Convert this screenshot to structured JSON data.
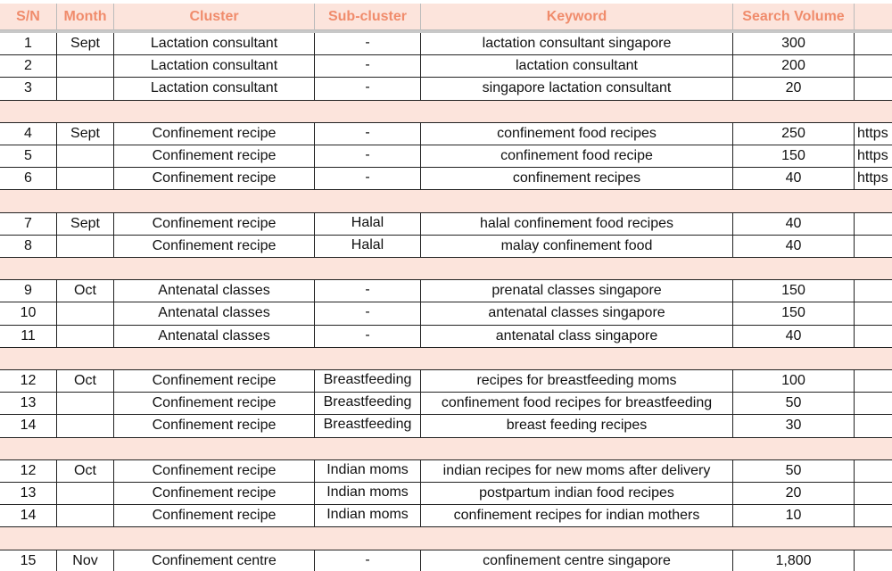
{
  "header": {
    "columns": [
      "S/N",
      "Month",
      "Cluster",
      "Sub-cluster",
      "Keyword",
      "Search Volume"
    ]
  },
  "table": {
    "groups": [
      {
        "rows": [
          {
            "sn": "1",
            "month": "Sept",
            "cluster": "Lactation consultant",
            "subcluster": "-",
            "keyword": "lactation consultant singapore",
            "volume": "300"
          },
          {
            "sn": "2",
            "cluster": "Lactation consultant",
            "subcluster": "-",
            "keyword": "lactation consultant",
            "volume": "200"
          },
          {
            "sn": "3",
            "cluster": "Lactation consultant",
            "subcluster": "-",
            "keyword": "singapore lactation consultant",
            "volume": "20"
          }
        ]
      },
      {
        "rows": [
          {
            "sn": "4",
            "month": "Sept",
            "cluster": "Confinement recipe",
            "subcluster": "-",
            "keyword": "confinement food recipes",
            "volume": "250",
            "link": "https"
          },
          {
            "sn": "5",
            "cluster": "Confinement recipe",
            "subcluster": "-",
            "keyword": "confinement food recipe",
            "volume": "150",
            "link": "https"
          },
          {
            "sn": "6",
            "cluster": "Confinement recipe",
            "subcluster": "-",
            "keyword": "confinement recipes",
            "volume": "40",
            "link": "https"
          }
        ]
      },
      {
        "rows": [
          {
            "sn": "7",
            "month": "Sept",
            "cluster": "Confinement recipe",
            "subcluster": "Halal",
            "keyword": "halal confinement food recipes",
            "volume": "40"
          },
          {
            "sn": "8",
            "cluster": "Confinement recipe",
            "subcluster": "Halal",
            "keyword": "malay confinement food",
            "volume": "40"
          }
        ]
      },
      {
        "rows": [
          {
            "sn": "9",
            "month": "Oct",
            "cluster": "Antenatal classes",
            "subcluster": "-",
            "keyword": "prenatal classes singapore",
            "volume": "150"
          },
          {
            "sn": "10",
            "cluster": "Antenatal classes",
            "subcluster": "-",
            "keyword": "antenatal classes singapore",
            "volume": "150"
          },
          {
            "sn": "11",
            "cluster": "Antenatal classes",
            "subcluster": "-",
            "keyword": "antenatal class singapore",
            "volume": "40"
          }
        ]
      },
      {
        "rows": [
          {
            "sn": "12",
            "month": "Oct",
            "cluster": "Confinement recipe",
            "subcluster": "Breastfeeding",
            "keyword": "recipes for breastfeeding moms",
            "volume": "100"
          },
          {
            "sn": "13",
            "cluster": "Confinement recipe",
            "subcluster": "Breastfeeding",
            "keyword": "confinement food recipes for breastfeeding",
            "volume": "50"
          },
          {
            "sn": "14",
            "cluster": "Confinement recipe",
            "subcluster": "Breastfeeding",
            "keyword": "breast feeding recipes",
            "volume": "30"
          }
        ]
      },
      {
        "rows": [
          {
            "sn": "12",
            "month": "Oct",
            "cluster": "Confinement recipe",
            "subcluster": "Indian moms",
            "keyword": "indian recipes for new moms after delivery",
            "volume": "50"
          },
          {
            "sn": "13",
            "cluster": "Confinement recipe",
            "subcluster": "Indian moms",
            "keyword": "postpartum indian food recipes",
            "volume": "20"
          },
          {
            "sn": "14",
            "cluster": "Confinement recipe",
            "subcluster": "Indian moms",
            "keyword": "confinement recipes for indian mothers",
            "volume": "10"
          }
        ]
      },
      {
        "rows": [
          {
            "sn": "15",
            "month": "Nov",
            "cluster": "Confinement centre",
            "subcluster": "-",
            "keyword": "confinement centre singapore",
            "volume": "1,800"
          }
        ]
      }
    ]
  }
}
